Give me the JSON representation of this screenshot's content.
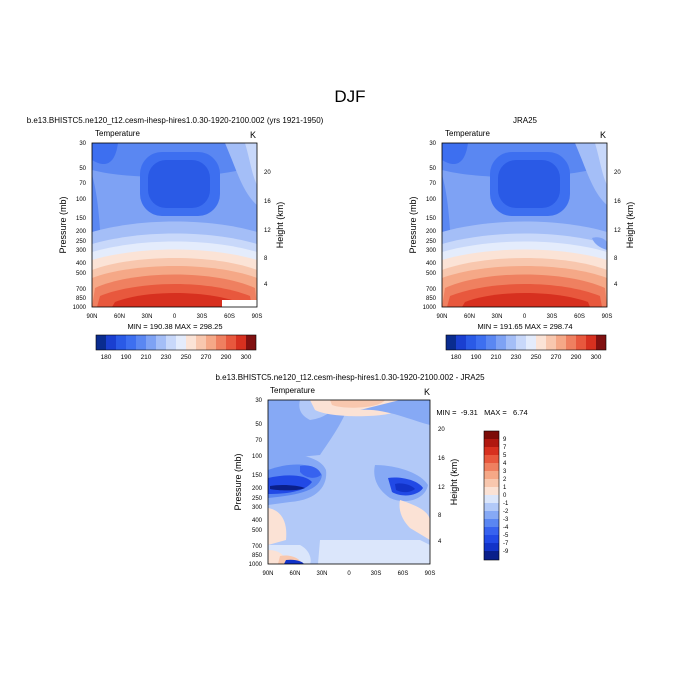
{
  "figure_title": "DJF",
  "chart_data": [
    {
      "type": "contour",
      "run_label": "b.e13.BHISTC5.ne120_t12.cesm-ihesp-hires1.0.30-1920-2100.002 (yrs 1921-1950)",
      "left_title": "Temperature",
      "right_title": "K",
      "ylabel": "Pressure (mb)",
      "ylabel_right": "Height (km)",
      "x_ticks": [
        "90N",
        "60N",
        "30N",
        "0",
        "30S",
        "60S",
        "90S"
      ],
      "y_ticks": [
        "30",
        "50",
        "70",
        "100",
        "150",
        "200",
        "250",
        "300",
        "400",
        "500",
        "700",
        "850",
        "1000"
      ],
      "height_ticks": [
        "20",
        "16",
        "12",
        "8",
        "4"
      ],
      "stats": "MIN = 190.38   MAX = 298.25",
      "min": 190.38,
      "max": 298.25,
      "colorbar": {
        "orientation": "horizontal",
        "labels": [
          "180",
          "190",
          "210",
          "230",
          "250",
          "270",
          "290",
          "300"
        ]
      }
    },
    {
      "type": "contour",
      "run_label": "JRA25",
      "left_title": "Temperature",
      "right_title": "K",
      "ylabel": "Pressure (mb)",
      "ylabel_right": "Height (km)",
      "x_ticks": [
        "90N",
        "60N",
        "30N",
        "0",
        "30S",
        "60S",
        "90S"
      ],
      "y_ticks": [
        "30",
        "50",
        "70",
        "100",
        "150",
        "200",
        "250",
        "300",
        "400",
        "500",
        "700",
        "850",
        "1000"
      ],
      "height_ticks": [
        "20",
        "16",
        "12",
        "8",
        "4"
      ],
      "stats": "MIN = 191.65   MAX = 298.74",
      "min": 191.65,
      "max": 298.74,
      "colorbar": {
        "orientation": "horizontal",
        "labels": [
          "180",
          "190",
          "210",
          "230",
          "250",
          "270",
          "290",
          "300"
        ]
      }
    },
    {
      "type": "contour",
      "run_label": "b.e13.BHISTC5.ne120_t12.cesm-ihesp-hires1.0.30-1920-2100.002 - JRA25",
      "left_title": "Temperature",
      "right_title": "K",
      "ylabel": "Pressure (mb)",
      "ylabel_right": "Height (km)",
      "x_ticks": [
        "90N",
        "60N",
        "30N",
        "0",
        "30S",
        "60S",
        "90S"
      ],
      "y_ticks": [
        "30",
        "50",
        "70",
        "100",
        "150",
        "200",
        "250",
        "300",
        "400",
        "500",
        "700",
        "850",
        "1000"
      ],
      "height_ticks": [
        "20",
        "16",
        "12",
        "8",
        "4"
      ],
      "stats": "MIN =  -9.31   MAX =   6.74",
      "min": -9.31,
      "max": 6.74,
      "colorbar": {
        "orientation": "vertical",
        "labels": [
          "9",
          "7",
          "5",
          "4",
          "3",
          "2",
          "1",
          "0",
          "-1",
          "-2",
          "-3",
          "-4",
          "-5",
          "-7",
          "-9"
        ]
      }
    }
  ],
  "colors": {
    "temp_scale": [
      "#0a2c8f",
      "#1a3fd0",
      "#2a5ae6",
      "#3d6ff0",
      "#5a87f2",
      "#7ea2f4",
      "#a4bef7",
      "#c8d8fa",
      "#e4ecfc",
      "#fbe3d6",
      "#f8c7ae",
      "#f5a887",
      "#ef8060",
      "#e8583d",
      "#d7301f",
      "#b71c14",
      "#801010"
    ],
    "diff_scale": [
      "#0a1f8a",
      "#1233c8",
      "#2149e6",
      "#3762ef",
      "#5a86f2",
      "#86a9f5",
      "#b2c9f8",
      "#dbe6fb",
      "#fbe2d5",
      "#f8c7ae",
      "#f5a887",
      "#ef8060",
      "#e8583d",
      "#d7301f",
      "#b01810",
      "#7c0c08"
    ]
  }
}
